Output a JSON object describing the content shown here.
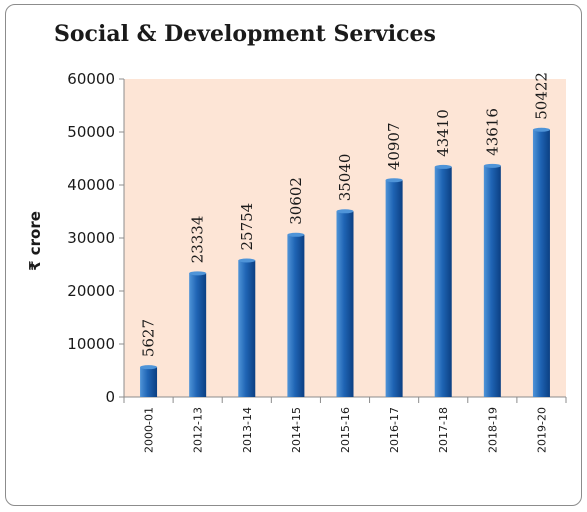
{
  "chart_data": {
    "type": "bar",
    "title": "Social & Development Services",
    "ylabel": "₹ crore",
    "xlabel": "",
    "categories": [
      "2000-01",
      "2012-13",
      "2013-14",
      "2014-15",
      "2015-16",
      "2016-17",
      "2017-18",
      "2018-19",
      "2019-20"
    ],
    "values": [
      5627,
      23334,
      25754,
      30602,
      35040,
      40907,
      43410,
      43616,
      50422
    ],
    "data_labels": [
      "5627",
      "23334",
      "25754",
      "30602",
      "35040",
      "40907",
      "43410",
      "43616",
      "50422"
    ],
    "yticks": [
      "0",
      "10000",
      "20000",
      "30000",
      "40000",
      "50000",
      "60000"
    ],
    "ylim": [
      0,
      60000
    ],
    "grid": false,
    "legend": "none"
  },
  "colors": {
    "plot_background": "#fde5d6",
    "bar_light": "#4f94d8",
    "bar_mid": "#1f64b4",
    "bar_dark": "#0b3f82",
    "axis": "#8c8c8c"
  }
}
